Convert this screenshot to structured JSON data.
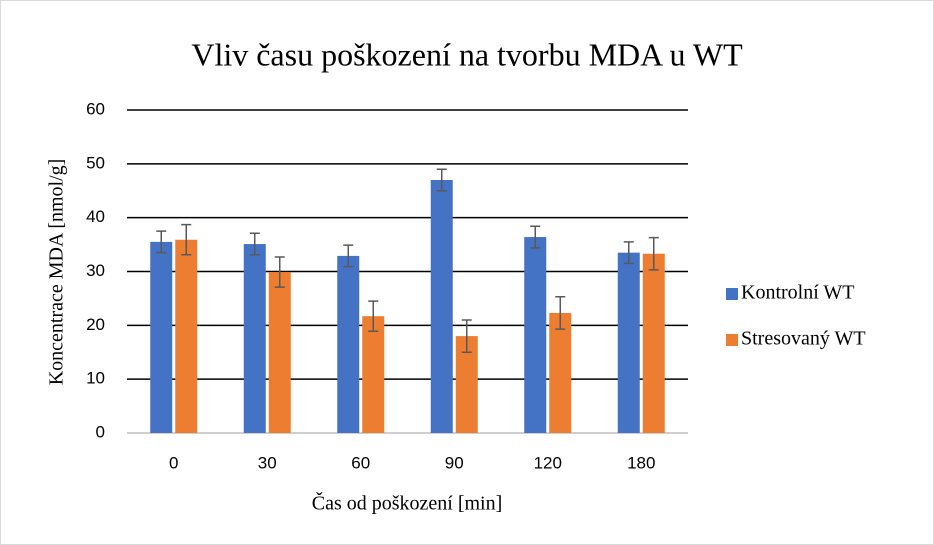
{
  "chart_data": {
    "type": "bar",
    "title": "Vliv času poškození na tvorbu MDA u WT",
    "x_label": "Čas od poškození [min]",
    "y_label": "Koncentrace MDA  [nmol/g]",
    "categories": [
      "0",
      "30",
      "60",
      "90",
      "120",
      "180"
    ],
    "series": [
      {
        "name": "Kontrolní WT",
        "color": "#4472c4",
        "values": [
          35.5,
          35.1,
          32.9,
          47.0,
          36.4,
          33.5
        ],
        "errors": [
          2,
          2,
          2,
          2,
          2,
          2
        ]
      },
      {
        "name": "Stresovaný WT",
        "color": "#ed7d31",
        "values": [
          35.9,
          29.9,
          21.7,
          18.0,
          22.3,
          33.3
        ],
        "errors": [
          2.8,
          2.8,
          2.8,
          3,
          3,
          3
        ]
      }
    ],
    "ylim": [
      0,
      60
    ],
    "yticks": [
      0,
      10,
      20,
      30,
      40,
      50,
      60
    ],
    "grid": true,
    "legend": "right"
  }
}
